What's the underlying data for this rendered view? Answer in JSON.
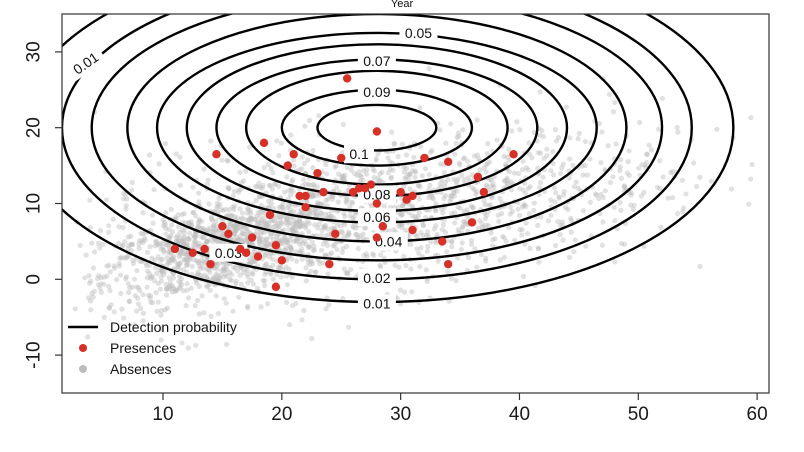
{
  "chart_data": {
    "type": "scatter",
    "title": "Year",
    "xlabel": "",
    "ylabel": "",
    "xlim": [
      1.5,
      61
    ],
    "ylim": [
      -15,
      35
    ],
    "x_ticks": [
      10,
      20,
      30,
      40,
      50,
      60
    ],
    "y_ticks": [
      -10,
      0,
      10,
      20,
      30
    ],
    "grid": false,
    "legend_position": "bottom-left",
    "legend": [
      {
        "name": "Detection probability",
        "kind": "line",
        "color": "#000000"
      },
      {
        "name": "Presences",
        "kind": "point",
        "color": "#d73027"
      },
      {
        "name": "Absences",
        "kind": "point",
        "color": "#bdbdbd"
      }
    ],
    "contours": {
      "center": [
        28,
        20
      ],
      "levels": [
        {
          "level": "0.01",
          "rx": 30,
          "ry": 23,
          "label_x": 28,
          "label_y": -3.2
        },
        {
          "level": "0.02",
          "rx": 26.5,
          "ry": 20,
          "label_x": 28,
          "label_y": 0.2
        },
        {
          "level": "0.03",
          "rx": 24,
          "ry": 17.5,
          "label_x": 15.5,
          "label_y": 3.5
        },
        {
          "level": "0.04",
          "rx": 21,
          "ry": 15,
          "label_x": 29,
          "label_y": 5
        },
        {
          "level": "0.05",
          "rx": 18.5,
          "ry": 12.5,
          "label_x": 31.5,
          "label_y": 32.5
        },
        {
          "level": "0.06",
          "rx": 16,
          "ry": 11,
          "label_x": 28,
          "label_y": 8.2
        },
        {
          "level": "0.07",
          "rx": 13.5,
          "ry": 9,
          "label_x": 28,
          "label_y": 28.8
        },
        {
          "level": "0.08",
          "rx": 11,
          "ry": 7.5,
          "label_x": 28,
          "label_y": 11.2
        },
        {
          "level": "0.09",
          "rx": 8,
          "ry": 5,
          "label_x": 28,
          "label_y": 24.7
        },
        {
          "level": "0.1",
          "rx": 5,
          "ry": 3,
          "label_x": 26.5,
          "label_y": 16.5
        }
      ],
      "extra_labels": [
        {
          "level": "0.01",
          "label_x": 3.5,
          "label_y": 28.5,
          "rotate": -35
        }
      ]
    },
    "presences": [
      [
        11,
        4
      ],
      [
        12.5,
        3.5
      ],
      [
        13.5,
        4
      ],
      [
        14,
        2
      ],
      [
        14.5,
        16.5
      ],
      [
        15,
        7
      ],
      [
        15.5,
        6
      ],
      [
        16.5,
        4
      ],
      [
        17,
        3.5
      ],
      [
        17.5,
        5.5
      ],
      [
        18,
        3
      ],
      [
        18.5,
        18
      ],
      [
        19,
        8.5
      ],
      [
        19.5,
        4.5
      ],
      [
        20,
        2.5
      ],
      [
        19.5,
        -1
      ],
      [
        20.5,
        15
      ],
      [
        21,
        16.5
      ],
      [
        21.5,
        11
      ],
      [
        22,
        9.5
      ],
      [
        22,
        11
      ],
      [
        23,
        14
      ],
      [
        23.5,
        11.5
      ],
      [
        24,
        2
      ],
      [
        24.5,
        6
      ],
      [
        25,
        16
      ],
      [
        25.5,
        26.5
      ],
      [
        26,
        11.5
      ],
      [
        26.5,
        12
      ],
      [
        27,
        12
      ],
      [
        27.5,
        12.5
      ],
      [
        28,
        10
      ],
      [
        28,
        5.5
      ],
      [
        28,
        19.5
      ],
      [
        28.5,
        7
      ],
      [
        30,
        11.5
      ],
      [
        30.5,
        10.5
      ],
      [
        31,
        6.5
      ],
      [
        31,
        11
      ],
      [
        32,
        16
      ],
      [
        33.5,
        5
      ],
      [
        34,
        2
      ],
      [
        34,
        15.5
      ],
      [
        36,
        7.5
      ],
      [
        36.5,
        13.5
      ],
      [
        37,
        11.5
      ],
      [
        39.5,
        16.5
      ]
    ],
    "absences_cloud": {
      "core_center": [
        15,
        4
      ],
      "core_spread": [
        5,
        3
      ],
      "core_count": 900,
      "diffuse_center": [
        28,
        9
      ],
      "diffuse_spread": [
        12,
        5
      ],
      "diffuse_count": 1400
    }
  }
}
